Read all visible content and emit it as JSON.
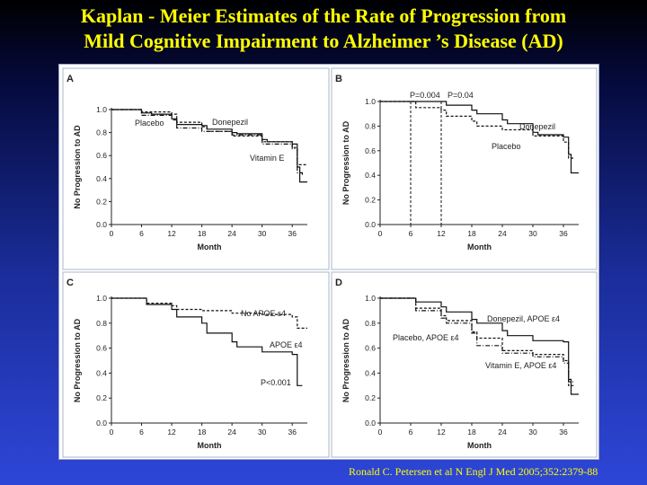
{
  "title": {
    "line1": "Kaplan - Meier Estimates of the Rate of Progression from",
    "line2": "Mild Cognitive Impairment to Alzheimer ’s Disease (AD)"
  },
  "citation": "Ronald C. Petersen et al N Engl J Med 2005;352:2379-88",
  "chart_data": [
    {
      "panel": "A",
      "type": "line",
      "xlabel": "Month",
      "ylabel": "No Progression to AD",
      "xticks": [
        0,
        6,
        12,
        18,
        24,
        30,
        36
      ],
      "yticks": [
        "0.0",
        "0.2",
        "0.4",
        "0.6",
        "0.8",
        "1.0"
      ],
      "xlim": [
        0,
        39
      ],
      "ylim": [
        0,
        1.0
      ],
      "series": [
        {
          "name": "Donepezil",
          "style": "solid",
          "points": [
            [
              0,
              1.0
            ],
            [
              5,
              1.0
            ],
            [
              6,
              0.97
            ],
            [
              8,
              0.96
            ],
            [
              12,
              0.92
            ],
            [
              13,
              0.87
            ],
            [
              18,
              0.86
            ],
            [
              19,
              0.83
            ],
            [
              24,
              0.8
            ],
            [
              25,
              0.79
            ],
            [
              30,
              0.74
            ],
            [
              31,
              0.72
            ],
            [
              36,
              0.7
            ],
            [
              37,
              0.5
            ],
            [
              37.5,
              0.37
            ],
            [
              39,
              0.37
            ]
          ]
        },
        {
          "name": "Placebo",
          "style": "dashed",
          "points": [
            [
              0,
              1.0
            ],
            [
              5,
              1.0
            ],
            [
              6,
              0.98
            ],
            [
              12,
              0.96
            ],
            [
              13,
              0.89
            ],
            [
              18,
              0.85
            ],
            [
              19,
              0.81
            ],
            [
              24,
              0.77
            ],
            [
              30,
              0.72
            ],
            [
              36,
              0.67
            ],
            [
              37,
              0.52
            ],
            [
              39,
              0.52
            ]
          ]
        },
        {
          "name": "Vitamin E",
          "style": "dashdot",
          "points": [
            [
              0,
              1.0
            ],
            [
              5,
              1.0
            ],
            [
              6,
              0.95
            ],
            [
              12,
              0.91
            ],
            [
              13,
              0.84
            ],
            [
              18,
              0.81
            ],
            [
              24,
              0.78
            ],
            [
              30,
              0.7
            ],
            [
              36,
              0.66
            ],
            [
              37,
              0.45
            ],
            [
              38,
              0.43
            ]
          ]
        }
      ],
      "annotations": []
    },
    {
      "panel": "B",
      "type": "line",
      "xlabel": "Month",
      "ylabel": "No Progression to AD",
      "xticks": [
        0,
        6,
        12,
        18,
        24,
        30,
        36
      ],
      "yticks": [
        "0.0",
        "0.2",
        "0.4",
        "0.6",
        "0.8",
        "1.0"
      ],
      "xlim": [
        0,
        39
      ],
      "ylim": [
        0,
        1.0
      ],
      "series": [
        {
          "name": "Donepezil",
          "style": "solid",
          "points": [
            [
              0,
              1.0
            ],
            [
              12,
              1.0
            ],
            [
              13,
              0.97
            ],
            [
              18,
              0.93
            ],
            [
              19,
              0.9
            ],
            [
              24,
              0.85
            ],
            [
              25,
              0.82
            ],
            [
              30,
              0.75
            ],
            [
              31,
              0.73
            ],
            [
              36,
              0.71
            ],
            [
              37,
              0.57
            ],
            [
              37.5,
              0.42
            ],
            [
              39,
              0.42
            ]
          ]
        },
        {
          "name": "Placebo",
          "style": "dashed",
          "points": [
            [
              0,
              1.0
            ],
            [
              6,
              1.0
            ],
            [
              7,
              0.95
            ],
            [
              12,
              0.93
            ],
            [
              13,
              0.88
            ],
            [
              18,
              0.84
            ],
            [
              19,
              0.8
            ],
            [
              24,
              0.77
            ],
            [
              30,
              0.72
            ],
            [
              36,
              0.67
            ],
            [
              37,
              0.54
            ],
            [
              38,
              0.54
            ]
          ]
        }
      ],
      "annotations": [
        {
          "text": "P=0.004",
          "x": 6
        },
        {
          "text": "P=0.04",
          "x": 12
        }
      ]
    },
    {
      "panel": "C",
      "type": "line",
      "xlabel": "Month",
      "ylabel": "No Progression to AD",
      "xticks": [
        0,
        6,
        12,
        18,
        24,
        30,
        36
      ],
      "yticks": [
        "0.0",
        "0.2",
        "0.4",
        "0.6",
        "0.8",
        "1.0"
      ],
      "xlim": [
        0,
        39
      ],
      "ylim": [
        0,
        1.0
      ],
      "series": [
        {
          "name": "No APOE ε4",
          "style": "dashed",
          "points": [
            [
              0,
              1.0
            ],
            [
              6,
              1.0
            ],
            [
              7,
              0.96
            ],
            [
              12,
              0.94
            ],
            [
              13,
              0.91
            ],
            [
              18,
              0.9
            ],
            [
              24,
              0.88
            ],
            [
              30,
              0.87
            ],
            [
              36,
              0.85
            ],
            [
              37,
              0.76
            ],
            [
              39,
              0.76
            ]
          ]
        },
        {
          "name": "APOE ε4",
          "style": "solid",
          "points": [
            [
              0,
              1.0
            ],
            [
              6,
              1.0
            ],
            [
              7,
              0.95
            ],
            [
              12,
              0.91
            ],
            [
              13,
              0.85
            ],
            [
              18,
              0.8
            ],
            [
              19,
              0.72
            ],
            [
              24,
              0.65
            ],
            [
              25,
              0.61
            ],
            [
              30,
              0.57
            ],
            [
              36,
              0.55
            ],
            [
              37,
              0.3
            ],
            [
              38,
              0.3
            ]
          ]
        }
      ],
      "annotations": [
        {
          "text": "P<0.001",
          "x": 30
        }
      ]
    },
    {
      "panel": "D",
      "type": "line",
      "xlabel": "Month",
      "ylabel": "No Progression to AD",
      "xticks": [
        0,
        6,
        12,
        18,
        24,
        30,
        36
      ],
      "yticks": [
        "0.0",
        "0.2",
        "0.4",
        "0.6",
        "0.8",
        "1.0"
      ],
      "xlim": [
        0,
        39
      ],
      "ylim": [
        0,
        1.0
      ],
      "series": [
        {
          "name": "Donepezil, APOE ε4",
          "style": "solid",
          "points": [
            [
              0,
              1.0
            ],
            [
              6,
              1.0
            ],
            [
              7,
              0.97
            ],
            [
              12,
              0.93
            ],
            [
              13,
              0.89
            ],
            [
              18,
              0.83
            ],
            [
              19,
              0.8
            ],
            [
              24,
              0.74
            ],
            [
              25,
              0.7
            ],
            [
              30,
              0.66
            ],
            [
              36,
              0.65
            ],
            [
              37,
              0.35
            ],
            [
              37.5,
              0.23
            ],
            [
              39,
              0.23
            ]
          ]
        },
        {
          "name": "Placebo, APOE ε4",
          "style": "dashed",
          "points": [
            [
              0,
              1.0
            ],
            [
              6,
              1.0
            ],
            [
              7,
              0.92
            ],
            [
              12,
              0.86
            ],
            [
              13,
              0.82
            ],
            [
              18,
              0.73
            ],
            [
              19,
              0.68
            ],
            [
              24,
              0.58
            ],
            [
              30,
              0.55
            ],
            [
              36,
              0.5
            ],
            [
              37,
              0.3
            ],
            [
              38,
              0.3
            ]
          ]
        },
        {
          "name": "Vitamin E, APOE ε4",
          "style": "dashdot",
          "points": [
            [
              0,
              1.0
            ],
            [
              6,
              1.0
            ],
            [
              7,
              0.9
            ],
            [
              12,
              0.84
            ],
            [
              13,
              0.8
            ],
            [
              18,
              0.72
            ],
            [
              19,
              0.62
            ],
            [
              24,
              0.56
            ],
            [
              30,
              0.53
            ],
            [
              36,
              0.48
            ],
            [
              37,
              0.33
            ],
            [
              38,
              0.33
            ]
          ]
        }
      ],
      "annotations": []
    }
  ]
}
